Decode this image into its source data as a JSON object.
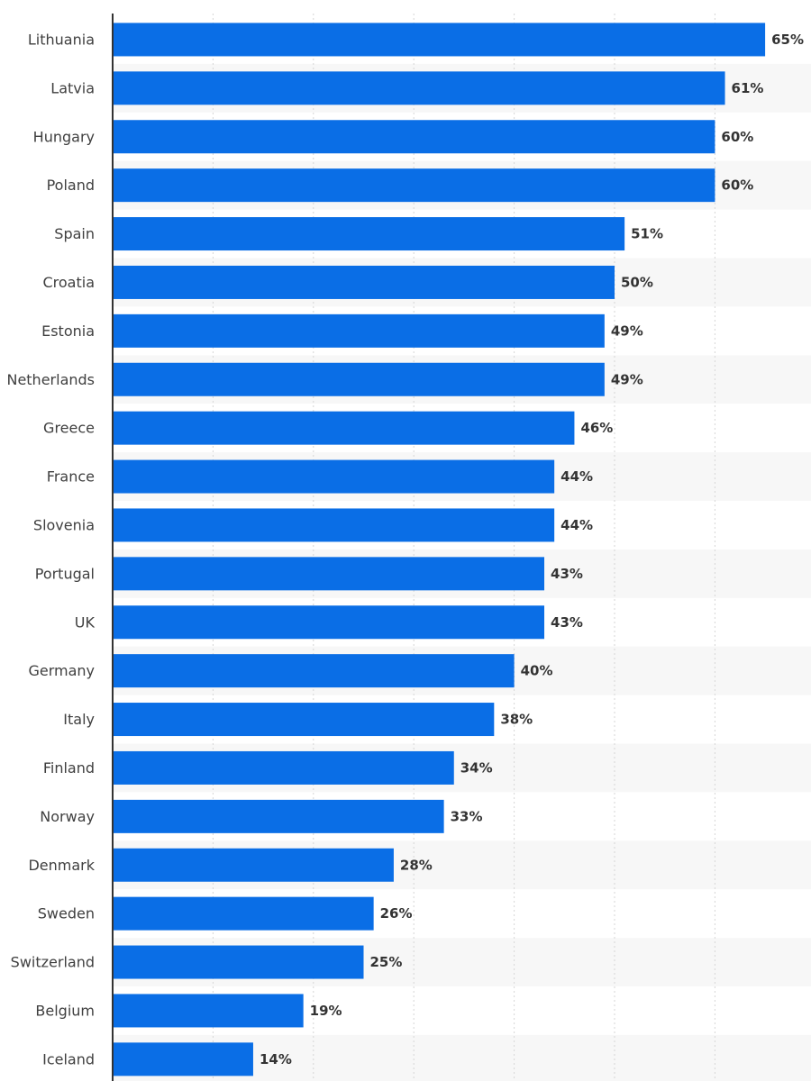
{
  "chart_data": {
    "type": "bar",
    "orientation": "horizontal",
    "title": "",
    "xlabel": "",
    "ylabel": "",
    "value_suffix": "%",
    "xlim": [
      0,
      70
    ],
    "grid": true,
    "legend": "none",
    "bar_color": "#0a6ee6",
    "categories": [
      "Lithuania",
      "Latvia",
      "Hungary",
      "Poland",
      "Spain",
      "Croatia",
      "Estonia",
      "Netherlands",
      "Greece",
      "France",
      "Slovenia",
      "Portugal",
      "UK",
      "Germany",
      "Italy",
      "Finland",
      "Norway",
      "Denmark",
      "Sweden",
      "Switzerland",
      "Belgium",
      "Iceland"
    ],
    "values": [
      65,
      61,
      60,
      60,
      51,
      50,
      49,
      49,
      46,
      44,
      44,
      43,
      43,
      40,
      38,
      34,
      33,
      28,
      26,
      25,
      19,
      14
    ]
  }
}
